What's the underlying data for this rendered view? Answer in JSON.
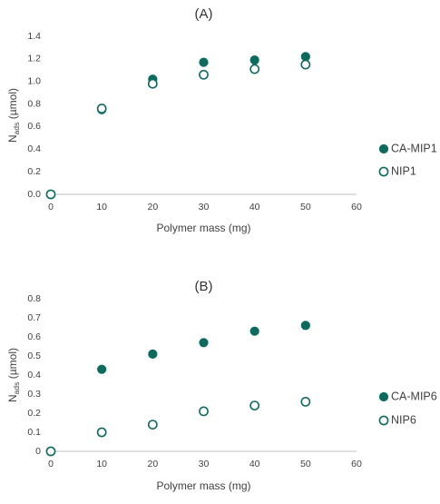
{
  "chart_data": [
    {
      "type": "scatter",
      "panel_label": "(A)",
      "xlabel": "Polymer mass (mg)",
      "ylabel_main": "N",
      "ylabel_sub": "ads",
      "ylabel_unit": " (µmol)",
      "xlim": [
        0,
        60
      ],
      "ylim": [
        0,
        1.4
      ],
      "xticks": [
        "0",
        "10",
        "20",
        "30",
        "40",
        "50",
        "60"
      ],
      "yticks": [
        "0.0",
        "0.2",
        "0.4",
        "0.6",
        "0.8",
        "1.0",
        "1.2",
        "1.4"
      ],
      "grid": false,
      "legend_position": "right",
      "series": [
        {
          "name": "CA-MIP1",
          "marker": "filled-circle",
          "color": "#0d6b5e",
          "x": [
            0,
            10,
            20,
            30,
            40,
            50
          ],
          "y": [
            0.0,
            0.75,
            1.02,
            1.17,
            1.19,
            1.22
          ]
        },
        {
          "name": "NIP1",
          "marker": "open-circle",
          "color": "#0d6b5e",
          "x": [
            0,
            10,
            20,
            30,
            40,
            50
          ],
          "y": [
            0.0,
            0.76,
            0.98,
            1.06,
            1.11,
            1.15
          ]
        }
      ]
    },
    {
      "type": "scatter",
      "panel_label": "(B)",
      "xlabel": "Polymer mass (mg)",
      "ylabel_main": "N",
      "ylabel_sub": "ads",
      "ylabel_unit": " (µmol)",
      "xlim": [
        0,
        60
      ],
      "ylim": [
        0,
        0.8
      ],
      "xticks": [
        "0",
        "10",
        "20",
        "30",
        "40",
        "50",
        "60"
      ],
      "yticks": [
        "0",
        "0.1",
        "0.2",
        "0.3",
        "0.4",
        "0.5",
        "0.6",
        "0.7",
        "0.8"
      ],
      "grid": false,
      "legend_position": "right",
      "series": [
        {
          "name": "CA-MIP6",
          "marker": "filled-circle",
          "color": "#0d6b5e",
          "x": [
            0,
            10,
            20,
            30,
            40,
            50
          ],
          "y": [
            0.0,
            0.43,
            0.51,
            0.57,
            0.63,
            0.66
          ]
        },
        {
          "name": "NIP6",
          "marker": "open-circle",
          "color": "#0d6b5e",
          "x": [
            0,
            10,
            20,
            30,
            40,
            50
          ],
          "y": [
            0.0,
            0.1,
            0.14,
            0.21,
            0.24,
            0.26
          ]
        }
      ]
    }
  ]
}
